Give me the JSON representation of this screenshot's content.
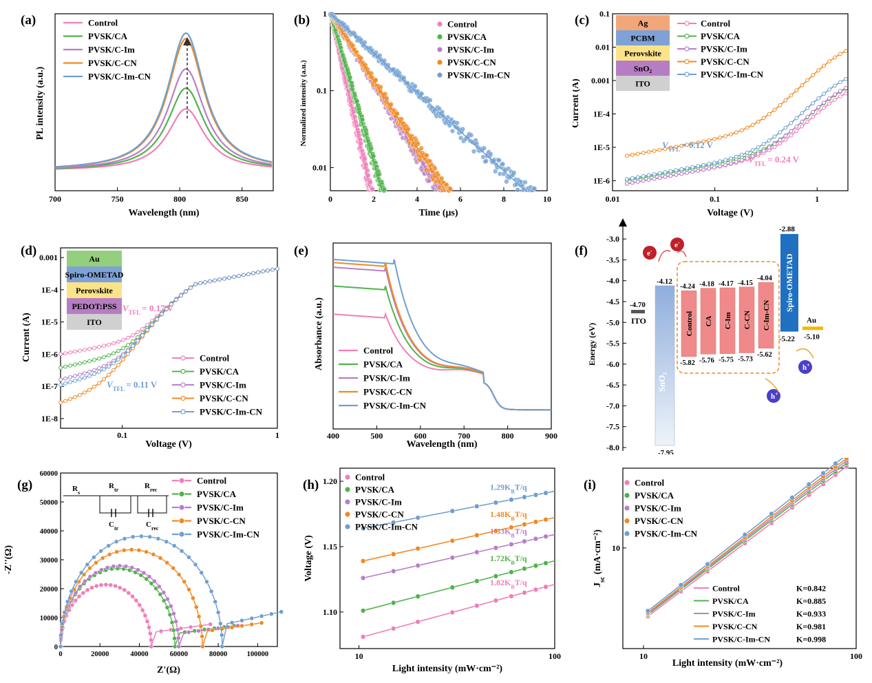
{
  "colors": {
    "Control": "#ef7fb9",
    "PVSK/CA": "#4fb44a",
    "PVSK/C-Im": "#b87ec8",
    "PVSK/C-CN": "#f08a24",
    "PVSK/C-Im-CN": "#6f9fd2"
  },
  "series_names": [
    "Control",
    "PVSK/CA",
    "PVSK/C-Im",
    "PVSK/C-CN",
    "PVSK/C-Im-CN"
  ],
  "panels": {
    "a": {
      "label": "(a)",
      "chart_data": {
        "type": "line",
        "xlabel": "Wavelength (nm)",
        "ylabel": "PL intensity (a.u.)",
        "xlim": [
          700,
          875
        ],
        "xticks": [
          "700",
          "750",
          "800",
          "850"
        ],
        "peak_wavelength": 805,
        "series": [
          {
            "name": "Control",
            "peak": 0.45
          },
          {
            "name": "PVSK/CA",
            "peak": 0.6
          },
          {
            "name": "PVSK/C-Im",
            "peak": 0.74
          },
          {
            "name": "PVSK/C-CN",
            "peak": 0.96
          },
          {
            "name": "PVSK/C-Im-CN",
            "peak": 1.0
          }
        ]
      }
    },
    "b": {
      "label": "(b)",
      "chart_data": {
        "type": "scatter",
        "xlabel": "Time (μs)",
        "ylabel": "Normalized intensity (a.u.)",
        "xlim": [
          0,
          10
        ],
        "ylim": [
          0.005,
          1
        ],
        "yscale": "log",
        "xticks": [
          "0",
          "2",
          "4",
          "6",
          "8",
          "10"
        ],
        "yticks": [
          "0.01",
          "0.1",
          "1"
        ],
        "series": [
          {
            "name": "Control",
            "decay_time": 0.35
          },
          {
            "name": "PVSK/CA",
            "decay_time": 0.45
          },
          {
            "name": "PVSK/C-Im",
            "decay_time": 0.95
          },
          {
            "name": "PVSK/C-CN",
            "decay_time": 1.0
          },
          {
            "name": "PVSK/C-Im-CN",
            "decay_time": 1.7
          }
        ]
      }
    },
    "c": {
      "label": "(c)",
      "chart_data": {
        "type": "line",
        "xlabel": "Voltage (V)",
        "ylabel": "Current (A)",
        "xscale": "log",
        "yscale": "log",
        "xlim": [
          0.01,
          2
        ],
        "ylim": [
          5e-07,
          0.1
        ],
        "xticks": [
          "0.01",
          "0.1",
          "1"
        ],
        "yticks": [
          "1E-6",
          "1E-5",
          "1E-4",
          "0.001",
          "0.01",
          "0.1"
        ],
        "stack": [
          "Ag",
          "PCBM",
          "Perovskite",
          "SnO₂",
          "ITO"
        ],
        "vtfl_1": "V",
        "vtfl_1_sub": "TFL",
        "vtfl_1_val": "= 0.12 V",
        "vtfl_2": "V",
        "vtfl_2_sub": "TFL",
        "vtfl_2_val": "= 0.24 V"
      }
    },
    "d": {
      "label": "(d)",
      "chart_data": {
        "type": "line",
        "xlabel": "Voltage (V)",
        "ylabel": "Current (A)",
        "xscale": "log",
        "yscale": "log",
        "xlim": [
          0.04,
          1
        ],
        "ylim": [
          5e-09,
          0.002
        ],
        "xticks": [
          "0.1",
          "1"
        ],
        "yticks": [
          "1E-8",
          "1E-7",
          "1E-6",
          "1E-5",
          "1E-4",
          "0.001"
        ],
        "stack": [
          "Au",
          "Spiro-OMETAD",
          "Perovskite",
          "PEDOT:PSS",
          "ITO"
        ],
        "vtfl_1": "V",
        "vtfl_1_sub": "TFL",
        "vtfl_1_val": "= 0.17 V",
        "vtfl_2": "V",
        "vtfl_2_sub": "TFL",
        "vtfl_2_val": "= 0.11 V"
      }
    },
    "e": {
      "label": "(e)",
      "chart_data": {
        "type": "line",
        "xlabel": "Wavelength (nm)",
        "ylabel": "Absorbance (a.u.)",
        "xlim": [
          400,
          900
        ],
        "xticks": [
          "400",
          "500",
          "600",
          "700",
          "800",
          "900"
        ],
        "series": [
          {
            "name": "Control",
            "plateau": 0.62
          },
          {
            "name": "PVSK/CA",
            "plateau": 0.8
          },
          {
            "name": "PVSK/C-Im",
            "plateau": 0.92
          },
          {
            "name": "PVSK/C-CN",
            "plateau": 0.95
          },
          {
            "name": "PVSK/C-Im-CN",
            "plateau": 0.97
          }
        ]
      }
    },
    "f": {
      "label": "(f)",
      "chart_data": {
        "type": "bar",
        "ylabel": "Energy (eV)",
        "ylim": [
          -8.0,
          -2.8
        ],
        "yticks": [
          "-3.0",
          "-3.5",
          "-4.0",
          "-4.5",
          "-5.0",
          "-5.5",
          "-6.0",
          "-6.5",
          "-7.0",
          "-7.5",
          "-8.0"
        ],
        "ito": {
          "name": "ITO",
          "level": "-4.70"
        },
        "sno2": {
          "name": "SnO₂",
          "cb": "-4.12",
          "vb": "-7.95"
        },
        "layers": [
          {
            "name": "Control",
            "cb": "-4.24",
            "vb": "-5.82"
          },
          {
            "name": "CA",
            "cb": "-4.18",
            "vb": "-5.76"
          },
          {
            "name": "C-Im",
            "cb": "-4.17",
            "vb": "-5.75"
          },
          {
            "name": "C-CN",
            "cb": "-4.15",
            "vb": "-5.73"
          },
          {
            "name": "C-Im-CN",
            "cb": "-4.04",
            "vb": "-5.62"
          }
        ],
        "spiro": {
          "name": "Spiro-OMETAD",
          "cb": "-2.88",
          "vb": "-5.22"
        },
        "au": {
          "name": "Au",
          "level": "-5.10"
        },
        "electron": "e",
        "electron_sup": "-",
        "hole": "h",
        "hole_sup": "+"
      }
    },
    "g": {
      "label": "(g)",
      "chart_data": {
        "type": "scatter",
        "xlabel": "Z'(Ω)",
        "ylabel": "-Z''(Ω)",
        "xlim": [
          0,
          110000
        ],
        "ylim": [
          0,
          60000
        ],
        "xticks": [
          "0",
          "20000",
          "40000",
          "60000",
          "80000",
          "100000"
        ],
        "yticks": [
          "0",
          "10000",
          "20000",
          "30000",
          "40000",
          "50000",
          "60000"
        ],
        "circuit": {
          "rs": "R",
          "rs_sub": "s",
          "rtr": "R",
          "rtr_sub": "tr",
          "rrec": "R",
          "rrec_sub": "rec",
          "ctr": "C",
          "ctr_sub": "tr",
          "crec": "C",
          "crec_sub": "rec"
        },
        "series": [
          {
            "name": "Control",
            "rtr": 46000,
            "tail": 8000
          },
          {
            "name": "PVSK/CA",
            "rtr": 58000,
            "tail": 7500
          },
          {
            "name": "PVSK/C-Im",
            "rtr": 60000,
            "tail": 7500
          },
          {
            "name": "PVSK/C-CN",
            "rtr": 72000,
            "tail": 8500
          },
          {
            "name": "PVSK/C-Im-CN",
            "rtr": 82000,
            "tail": 12500
          }
        ]
      }
    },
    "h": {
      "label": "(h)",
      "chart_data": {
        "type": "scatter",
        "xlabel": "Light intensity (mW·cm⁻²)",
        "ylabel": "Voltage (V)",
        "xscale": "log",
        "xlim": [
          8,
          100
        ],
        "ylim": [
          1.072,
          1.21
        ],
        "xticks": [
          "10",
          "100"
        ],
        "yticks": [
          "1.10",
          "1.15",
          "1.20"
        ],
        "series": [
          {
            "name": "Control",
            "v10": 1.081,
            "slope": 0.041,
            "fit": "1.82K",
            "fit_sub": "B",
            "fit_tail": "T/q"
          },
          {
            "name": "PVSK/CA",
            "v10": 1.101,
            "slope": 0.039,
            "fit": "1.72K",
            "fit_sub": "B",
            "fit_tail": "T/q"
          },
          {
            "name": "PVSK/C-Im",
            "v10": 1.126,
            "slope": 0.034,
            "fit": "1.53K",
            "fit_sub": "B",
            "fit_tail": "T/q"
          },
          {
            "name": "PVSK/C-CN",
            "v10": 1.139,
            "slope": 0.034,
            "fit": "1.48K",
            "fit_sub": "B",
            "fit_tail": "T/q"
          },
          {
            "name": "PVSK/C-Im-CN",
            "v10": 1.164,
            "slope": 0.029,
            "fit": "1.29K",
            "fit_sub": "B",
            "fit_tail": "T/q"
          }
        ]
      }
    },
    "i": {
      "label": "(i)",
      "chart_data": {
        "type": "scatter",
        "xlabel": "Light intensity (mW·cm⁻²)",
        "ylabel": "J",
        "ylabel_sub": "sc",
        "ylabel_tail": " (mA·cm⁻²)",
        "xscale": "log",
        "yscale": "log",
        "xlim": [
          8,
          100
        ],
        "ylim": [
          2.5,
          30
        ],
        "xticks": [
          "10",
          "100"
        ],
        "yticks": [
          "10"
        ],
        "series": [
          {
            "name": "Control",
            "k": "K=0.842",
            "j10": 3.9
          },
          {
            "name": "PVSK/CA",
            "k": "K=0.885",
            "j10": 4.0
          },
          {
            "name": "PVSK/C-Im",
            "k": "K=0.933",
            "j10": 4.05
          },
          {
            "name": "PVSK/C-CN",
            "k": "K=0.981",
            "j10": 4.1
          },
          {
            "name": "PVSK/C-Im-CN",
            "k": "K=0.998",
            "j10": 4.2
          }
        ]
      }
    }
  }
}
